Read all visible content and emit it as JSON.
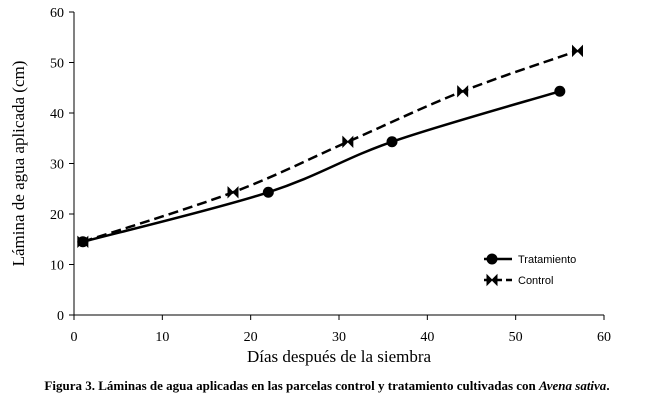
{
  "chart_data": {
    "type": "line",
    "xlabel": "Días después de la siembra",
    "ylabel": "Lámina de agua aplicada (cm)",
    "xlim": [
      0,
      60
    ],
    "ylim": [
      0,
      60
    ],
    "xticks": [
      0,
      10,
      20,
      30,
      40,
      50,
      60
    ],
    "yticks": [
      0,
      10,
      20,
      30,
      40,
      50,
      60
    ],
    "grid": false,
    "legend_position": "bottom-right",
    "series": [
      {
        "name": "Tratamiento",
        "color": "#000000",
        "line_style": "solid",
        "marker": "circle",
        "x": [
          1,
          22,
          36,
          55
        ],
        "y": [
          14.5,
          24.3,
          34.3,
          44.3
        ]
      },
      {
        "name": "Control",
        "color": "#000000",
        "line_style": "dashed",
        "marker": "bowtie",
        "x": [
          1,
          18,
          31,
          44,
          57
        ],
        "y": [
          14.5,
          24.3,
          34.3,
          44.3,
          52.3
        ]
      }
    ]
  },
  "caption": {
    "prefix": "Figura 3. Láminas de agua aplicadas en las parcelas control y tratamiento cultivadas con ",
    "species": "Avena sativa",
    "suffix": "."
  }
}
